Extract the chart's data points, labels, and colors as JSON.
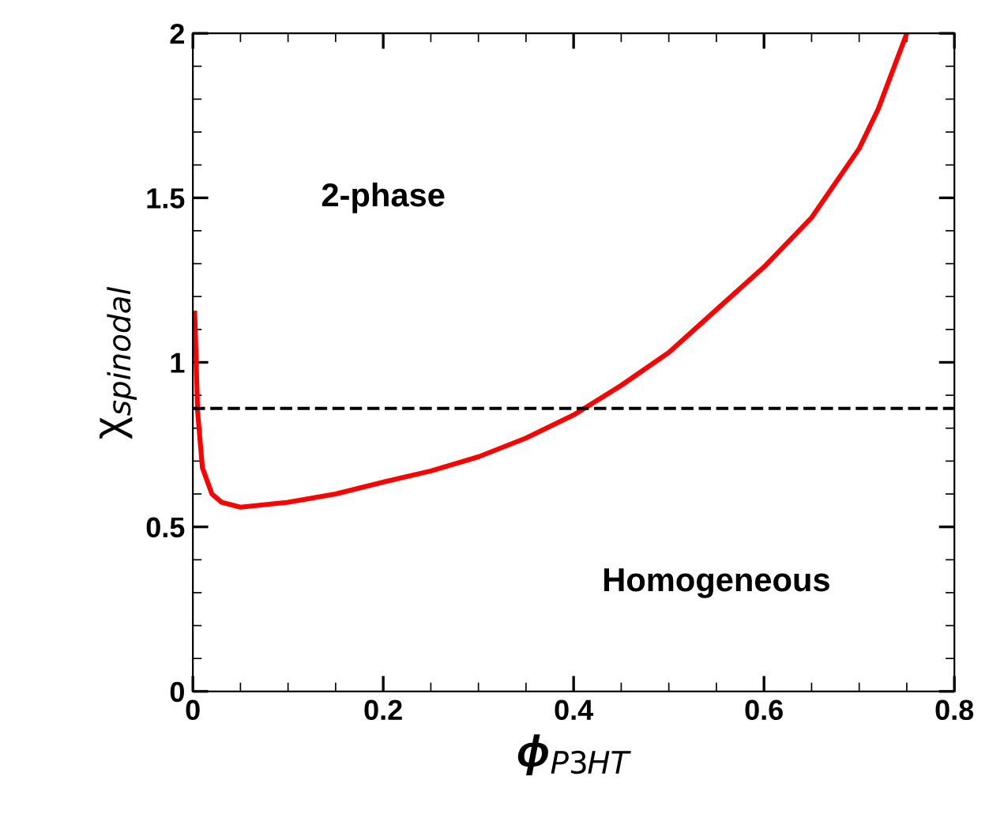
{
  "chart_data": {
    "type": "line",
    "xlabel": "ϕ$_{P3HT}$",
    "ylabel": "χ$_{spinodal}$",
    "series": [
      {
        "color": "#ff0000",
        "x": [
          0.002,
          0.005,
          0.01,
          0.02,
          0.03,
          0.05,
          0.1,
          0.15,
          0.2,
          0.25,
          0.3,
          0.35,
          0.4,
          0.45,
          0.5,
          0.55,
          0.6,
          0.65,
          0.7,
          0.72,
          0.75
        ],
        "values": [
          1.15,
          0.85,
          0.68,
          0.6,
          0.575,
          0.56,
          0.575,
          0.6,
          0.636,
          0.67,
          0.713,
          0.77,
          0.84,
          0.93,
          1.03,
          1.16,
          1.29,
          1.44,
          1.65,
          1.77,
          2.0
        ]
      }
    ],
    "xlim": [
      0,
      0.8
    ],
    "ylim": [
      0,
      2
    ],
    "xticks": [
      0,
      0.2,
      0.4,
      0.6,
      0.8
    ],
    "yticks": [
      0,
      0.5,
      1,
      1.5,
      2
    ],
    "ref_lines": [
      {
        "axis": "y",
        "value": 0.86,
        "color": "#000000",
        "line_style": "dashed"
      }
    ],
    "annotations": [
      "2-phase",
      "Homogeneous"
    ],
    "grid": false,
    "legend": false,
    "marker": "none",
    "line_style": "solid"
  }
}
